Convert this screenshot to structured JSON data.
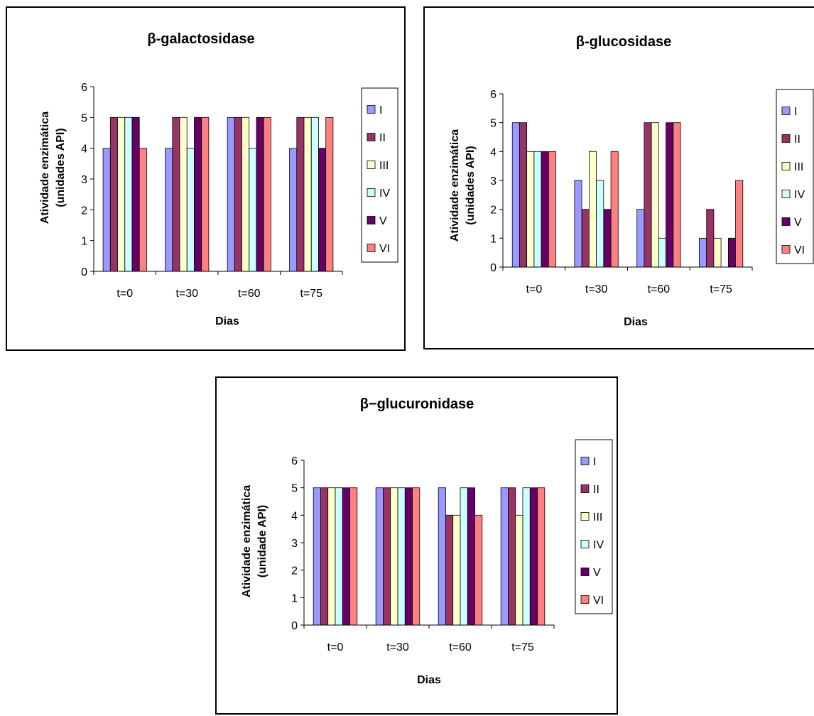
{
  "chart_data": [
    {
      "type": "bar",
      "title": "β-galactosidase",
      "xlabel": "Dias",
      "ylabel": [
        "Atividade enzimática",
        "(unidades API)"
      ],
      "categories": [
        "t=0",
        "t=30",
        "t=60",
        "t=75"
      ],
      "ylim": [
        0,
        6
      ],
      "yticks": [
        "0",
        "1",
        "2",
        "3",
        "4",
        "5",
        "6"
      ],
      "legend_position": "right",
      "series": [
        {
          "name": "I",
          "color": "#9999FF",
          "values": [
            4,
            4,
            5,
            4
          ]
        },
        {
          "name": "II",
          "color": "#993366",
          "values": [
            5,
            5,
            5,
            5
          ]
        },
        {
          "name": "III",
          "color": "#FFFFCC",
          "values": [
            5,
            5,
            5,
            5
          ]
        },
        {
          "name": "IV",
          "color": "#CCFFFF",
          "values": [
            5,
            4,
            4,
            5
          ]
        },
        {
          "name": "V",
          "color": "#660066",
          "values": [
            5,
            5,
            5,
            4
          ]
        },
        {
          "name": "VI",
          "color": "#FF8080",
          "values": [
            4,
            5,
            5,
            5
          ]
        }
      ]
    },
    {
      "type": "bar",
      "title": "β-glucosidase",
      "xlabel": "Dias",
      "ylabel": [
        "Atividade enzimática",
        "(unidades API)"
      ],
      "categories": [
        "t=0",
        "t=30",
        "t=60",
        "t=75"
      ],
      "ylim": [
        0,
        6
      ],
      "yticks": [
        "0",
        "1",
        "2",
        "3",
        "4",
        "5",
        "6"
      ],
      "legend_position": "right",
      "series": [
        {
          "name": "I",
          "color": "#9999FF",
          "values": [
            5,
            3,
            2,
            1
          ]
        },
        {
          "name": "II",
          "color": "#993366",
          "values": [
            5,
            2,
            5,
            2
          ]
        },
        {
          "name": "III",
          "color": "#FFFFCC",
          "values": [
            4,
            4,
            5,
            1
          ]
        },
        {
          "name": "IV",
          "color": "#CCFFFF",
          "values": [
            4,
            3,
            1,
            0
          ]
        },
        {
          "name": "V",
          "color": "#660066",
          "values": [
            4,
            2,
            5,
            1
          ]
        },
        {
          "name": "VI",
          "color": "#FF8080",
          "values": [
            4,
            4,
            5,
            3
          ]
        }
      ]
    },
    {
      "type": "bar",
      "title": "β−glucuronidase",
      "xlabel": "Dias",
      "ylabel": [
        "Atividade enzimática",
        "(unidade API)"
      ],
      "categories": [
        "t=0",
        "t=30",
        "t=60",
        "t=75"
      ],
      "ylim": [
        0,
        6
      ],
      "yticks": [
        "0",
        "1",
        "2",
        "3",
        "4",
        "5",
        "6"
      ],
      "legend_position": "right",
      "series": [
        {
          "name": "I",
          "color": "#9999FF",
          "values": [
            5,
            5,
            5,
            5
          ]
        },
        {
          "name": "II",
          "color": "#993366",
          "values": [
            5,
            5,
            4,
            5
          ]
        },
        {
          "name": "III",
          "color": "#FFFFCC",
          "values": [
            5,
            5,
            4,
            4
          ]
        },
        {
          "name": "IV",
          "color": "#CCFFFF",
          "values": [
            5,
            5,
            5,
            5
          ]
        },
        {
          "name": "V",
          "color": "#660066",
          "values": [
            5,
            5,
            5,
            5
          ]
        },
        {
          "name": "VI",
          "color": "#FF8080",
          "values": [
            5,
            5,
            4,
            5
          ]
        }
      ]
    }
  ]
}
